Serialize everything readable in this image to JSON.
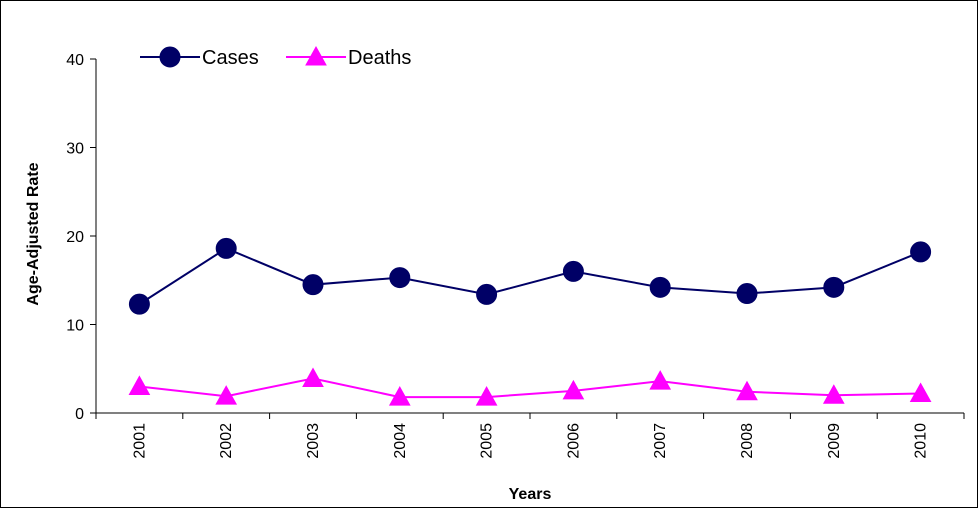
{
  "chart_data": {
    "type": "line",
    "title": "",
    "xlabel": "Years",
    "ylabel": "Age-Adjusted Rate",
    "categories": [
      "2001",
      "2002",
      "2003",
      "2004",
      "2005",
      "2006",
      "2007",
      "2008",
      "2009",
      "2010"
    ],
    "ylim": [
      0,
      40
    ],
    "yticks": [
      "0",
      "10",
      "20",
      "30",
      "40"
    ],
    "grid": false,
    "legend_position": "top-left",
    "series": [
      {
        "name": "Cases",
        "marker": "circle",
        "color": "#000066",
        "values": [
          12.3,
          18.6,
          14.5,
          15.3,
          13.4,
          16.0,
          14.2,
          13.5,
          14.2,
          18.2
        ]
      },
      {
        "name": "Deaths",
        "marker": "triangle",
        "color": "#ff00ff",
        "values": [
          3.0,
          1.9,
          3.9,
          1.8,
          1.8,
          2.5,
          3.6,
          2.4,
          2.0,
          2.2
        ]
      }
    ]
  }
}
